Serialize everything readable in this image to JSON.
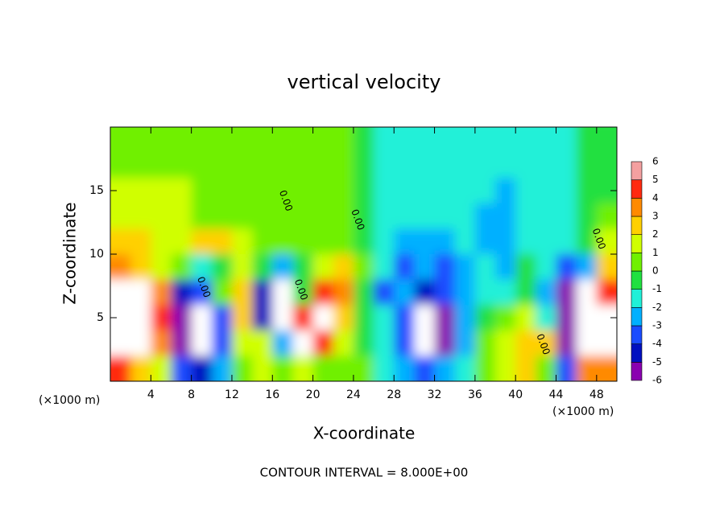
{
  "chart_data": {
    "type": "heatmap",
    "title": "vertical velocity",
    "xlabel": "X-coordinate",
    "ylabel": "Z-coordinate",
    "x_unit_labels": [
      "(×1000 m)",
      "(×1000 m)"
    ],
    "footer": "CONTOUR INTERVAL = 8.000E+00",
    "xlim": [
      0,
      50
    ],
    "ylim": [
      0,
      20
    ],
    "xticks": [
      4,
      8,
      12,
      16,
      20,
      24,
      28,
      32,
      36,
      40,
      44,
      48
    ],
    "yticks": [
      5,
      10,
      15
    ],
    "x": [
      1,
      3,
      5,
      7,
      9,
      11,
      13,
      15,
      17,
      19,
      21,
      23,
      25,
      27,
      29,
      31,
      33,
      35,
      37,
      39,
      41,
      43,
      45,
      47,
      49
    ],
    "y": [
      19,
      17,
      15,
      13,
      11,
      9,
      7,
      5,
      3,
      1
    ],
    "z": [
      [
        0.5,
        0.5,
        0.5,
        0.5,
        0.5,
        0.5,
        0.5,
        0.5,
        0.5,
        0.5,
        0.5,
        0.5,
        -0.8,
        -1.2,
        -1.2,
        -1.2,
        -1.2,
        -1.2,
        -1.2,
        -1.2,
        -1.2,
        -1.2,
        -1,
        -0.5,
        -0.5
      ],
      [
        0.8,
        1,
        1,
        1,
        0.8,
        0.5,
        0.5,
        0.5,
        0.5,
        0.5,
        0.5,
        0.5,
        -0.8,
        -1.2,
        -1.2,
        -1.2,
        -1.2,
        -1.2,
        -1.2,
        -1.5,
        -1.2,
        -1.2,
        -1,
        -0.5,
        -0.5
      ],
      [
        1.2,
        1.2,
        1.5,
        1.2,
        1,
        0.5,
        0.5,
        0.5,
        0.5,
        0.5,
        0.5,
        0.5,
        -0.8,
        -1.2,
        -1.3,
        -1.3,
        -1.3,
        -1.3,
        -1.5,
        -2,
        -1.5,
        -1.3,
        -1,
        -0.5,
        -0.5
      ],
      [
        1.5,
        1.5,
        1.5,
        1.2,
        1,
        0.8,
        0.5,
        0.5,
        0.5,
        0.5,
        0.5,
        0.5,
        -0.8,
        -1.3,
        -1.5,
        -1.5,
        -1.5,
        -1.5,
        -2,
        -2.5,
        -1.5,
        -1.3,
        -1,
        -0.5,
        0.5
      ],
      [
        2.5,
        2.5,
        2,
        1.5,
        2.5,
        2.5,
        1.5,
        0.5,
        0.5,
        0.5,
        0.5,
        0.5,
        0,
        -1.5,
        -2,
        -2.5,
        -2,
        -1.5,
        -2,
        -2.5,
        -1,
        -1,
        -1,
        -0.5,
        1.5
      ],
      [
        4,
        3,
        2,
        0.5,
        -1,
        0,
        1.5,
        -0.5,
        -2,
        0,
        2,
        3,
        1,
        -1,
        -3,
        -2,
        -3,
        -2,
        -1,
        -2.5,
        -0.5,
        -1,
        -3,
        -2,
        3
      ],
      [
        8,
        7,
        4,
        -4,
        -3,
        1,
        3,
        -4,
        -7,
        0,
        5,
        4,
        0,
        -3,
        -2,
        -4,
        -3,
        -2,
        -1,
        -1,
        0,
        -2,
        -5,
        8,
        5
      ],
      [
        8,
        8,
        5,
        -5,
        -8,
        -3,
        3,
        -4,
        -7,
        5,
        8,
        3,
        0,
        -1,
        -3,
        -7,
        -5,
        -2,
        0,
        1,
        2,
        -1,
        -5,
        8,
        8
      ],
      [
        8,
        7,
        4,
        -5,
        -8,
        -3,
        2,
        1.5,
        -2,
        8,
        5,
        2,
        0,
        -1,
        -3,
        -7,
        -6,
        -2,
        1,
        1.5,
        3,
        3,
        -5,
        8,
        8
      ],
      [
        5,
        3,
        2,
        -3,
        -4,
        -2,
        1,
        2,
        1,
        2,
        1,
        0.5,
        0.5,
        -1,
        -2,
        -3,
        -2,
        -1,
        1,
        2,
        2.5,
        1,
        -3,
        4,
        4
      ]
    ],
    "levels": [
      -6,
      -5,
      -4,
      -3,
      -2,
      -1,
      0,
      1,
      2,
      3,
      4,
      5,
      6
    ],
    "colors": [
      "#8a00b0",
      "#0010c0",
      "#1a4cff",
      "#00b0ff",
      "#20f0d8",
      "#20e040",
      "#70f000",
      "#d0ff00",
      "#ffd000",
      "#ff8a00",
      "#ff2a10",
      "#f4a0a0"
    ],
    "out_of_range_color": "#ffffff",
    "contour_labels": [
      {
        "text": "0.00",
        "x": 17.3,
        "y": 14.2
      },
      {
        "text": "0.00",
        "x": 24.4,
        "y": 12.7
      },
      {
        "text": "0.00",
        "x": 18.8,
        "y": 7.2
      },
      {
        "text": "0.00",
        "x": 9.2,
        "y": 7.4
      },
      {
        "text": "0.00",
        "x": 42.7,
        "y": 2.9
      },
      {
        "text": "0.00",
        "x": 48.2,
        "y": 11.2
      }
    ]
  }
}
